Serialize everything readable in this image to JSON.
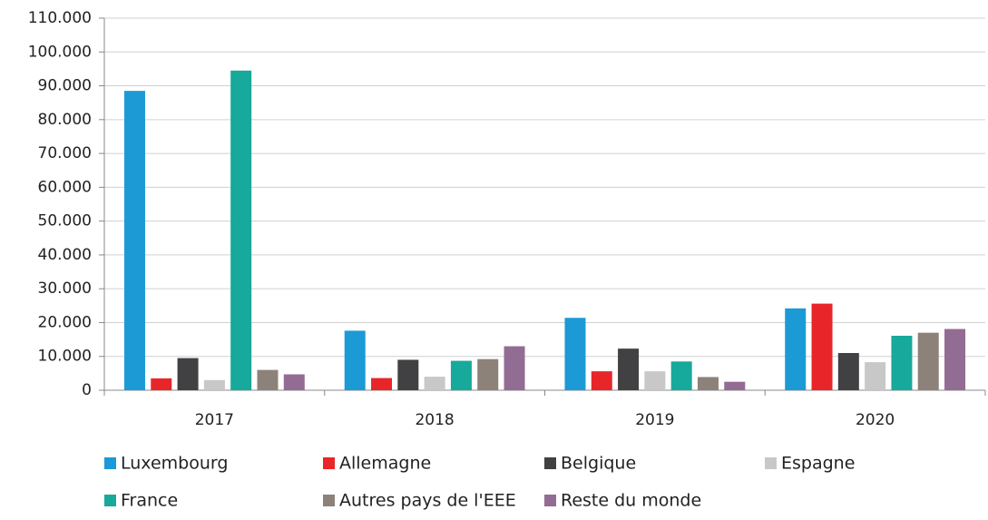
{
  "chart_data": {
    "type": "bar",
    "categories": [
      "2017",
      "2018",
      "2019",
      "2020"
    ],
    "series": [
      {
        "name": "Luxembourg",
        "color": "#1b9ad6",
        "values": [
          88500,
          17600,
          21400,
          24200
        ]
      },
      {
        "name": "Allemagne",
        "color": "#e8262a",
        "values": [
          3500,
          3600,
          5600,
          25600
        ]
      },
      {
        "name": "Belgique",
        "color": "#414042",
        "values": [
          9500,
          9000,
          12300,
          11000
        ]
      },
      {
        "name": "Espagne",
        "color": "#c8c8c8",
        "values": [
          3000,
          4000,
          5600,
          8300
        ]
      },
      {
        "name": "France",
        "color": "#17a99b",
        "values": [
          94500,
          8700,
          8500,
          16100
        ]
      },
      {
        "name": "Autres pays de l'EEE",
        "color": "#8c8279",
        "values": [
          6000,
          9200,
          3900,
          17000
        ]
      },
      {
        "name": "Reste du monde",
        "color": "#936c93",
        "values": [
          4700,
          13000,
          2500,
          18100
        ]
      }
    ],
    "ylim": [
      0,
      110000
    ],
    "yticks": [
      0,
      {
        "value": 10000,
        "label": "10.000"
      },
      {
        "value": 20000,
        "label": "20.000"
      },
      {
        "value": 30000,
        "label": "30.000"
      },
      {
        "value": 40000,
        "label": "40.000"
      },
      {
        "value": 50000,
        "label": "50.000"
      },
      {
        "value": 60000,
        "label": "60.000"
      },
      {
        "value": 70000,
        "label": "70.000"
      },
      {
        "value": 80000,
        "label": "80.000"
      },
      {
        "value": 90000,
        "label": "90.000"
      },
      {
        "value": 100000,
        "label": "100.000"
      },
      {
        "value": 110000,
        "label": "110.000"
      }
    ],
    "grid": true,
    "legend": "bottom"
  }
}
